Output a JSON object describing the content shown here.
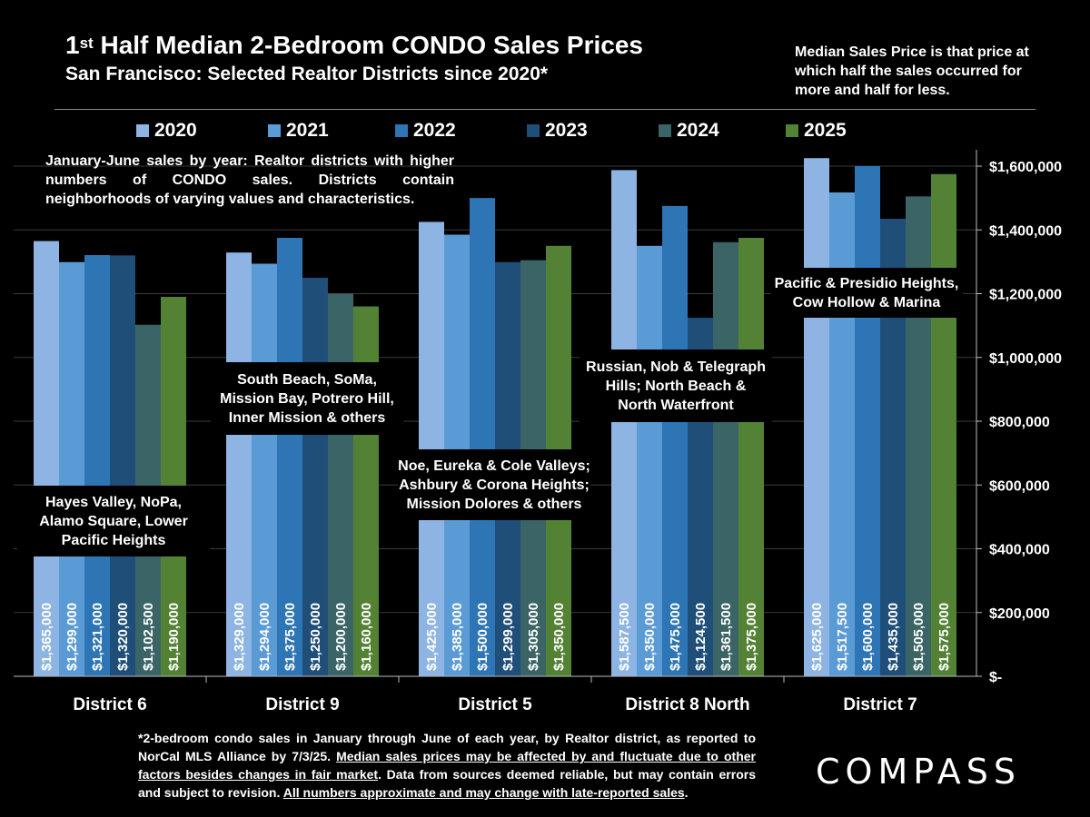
{
  "header": {
    "title_prefix": "1",
    "title_sup": "st",
    "title_rest": " Half Median 2-Bedroom CONDO Sales Prices",
    "subtitle": "San Francisco: Selected Realtor Districts since 2020*"
  },
  "note": "Median Sales Price is that price at which half the sales occurred for more and half for less.",
  "intro": "January-June sales by year: Realtor districts with higher numbers of CONDO sales. Districts contain neighborhoods of varying values and characteristics.",
  "footnote": {
    "part1": "*2-bedroom condo sales in January through June of each year, by Realtor district, as reported to NorCal MLS Alliance by 7/3/25. ",
    "part2": "Median sales prices may be affected by and fluctuate due to other factors besides changes in fair market",
    "part3": ". Data from sources deemed reliable, but may contain errors and subject to revision. ",
    "part4": "All numbers approximate and may change with late-reported sales",
    "part5": "."
  },
  "logo": "COMPASS",
  "chart_data": {
    "type": "bar",
    "categories": [
      "District 6",
      "District 9",
      "District 5",
      "District 8 North",
      "District 7"
    ],
    "series": [
      {
        "name": "2020",
        "color": "#8db4e2",
        "values": [
          1365000,
          1329000,
          1425000,
          1587500,
          1625000
        ]
      },
      {
        "name": "2021",
        "color": "#5b9bd5",
        "values": [
          1299000,
          1294000,
          1385000,
          1350000,
          1517500
        ]
      },
      {
        "name": "2022",
        "color": "#2e75b6",
        "values": [
          1321000,
          1375000,
          1500000,
          1475000,
          1600000
        ]
      },
      {
        "name": "2023",
        "color": "#1f4e79",
        "values": [
          1320000,
          1250000,
          1299000,
          1124500,
          1435000
        ]
      },
      {
        "name": "2024",
        "color": "#3a6466",
        "values": [
          1102500,
          1200000,
          1305000,
          1361500,
          1505000
        ]
      },
      {
        "name": "2025",
        "color": "#548235",
        "values": [
          1190000,
          1160000,
          1350000,
          1375000,
          1575000
        ]
      }
    ],
    "data_labels": [
      [
        "$1,365,000",
        "$1,299,000",
        "$1,321,000",
        "$1,320,000",
        "$1,102,500",
        "$1,190,000"
      ],
      [
        "$1,329,000",
        "$1,294,000",
        "$1,375,000",
        "$1,250,000",
        "$1,200,000",
        "$1,160,000"
      ],
      [
        "$1,425,000",
        "$1,385,000",
        "$1,500,000",
        "$1,299,000",
        "$1,305,000",
        "$1,350,000"
      ],
      [
        "$1,587,500",
        "$1,350,000",
        "$1,475,000",
        "$1,124,500",
        "$1,361,500",
        "$1,375,000"
      ],
      [
        "$1,625,000",
        "$1,517,500",
        "$1,600,000",
        "$1,435,000",
        "$1,505,000",
        "$1,575,000"
      ]
    ],
    "district_names": [
      "Hayes Valley, NoPa,\nAlamo Square, Lower\nPacific Heights",
      "South Beach, SoMa,\nMission Bay, Potrero Hill,\nInner Mission & others",
      "Noe, Eureka & Cole Valleys;\nAshbury & Corona Heights;\nMission Dolores & others",
      "Russian, Nob & Telegraph\nHills; North Beach &\nNorth Waterfront",
      "Pacific & Presidio Heights,\nCow Hollow & Marina"
    ],
    "y_ticks": [
      0,
      200000,
      400000,
      600000,
      800000,
      1000000,
      1200000,
      1400000,
      1600000
    ],
    "y_tick_labels": [
      "$-",
      "$200,000",
      "$400,000",
      "$600,000",
      "$800,000",
      "$1,000,000",
      "$1,200,000",
      "$1,400,000",
      "$1,600,000"
    ],
    "ylim": [
      0,
      1600000
    ],
    "y_axis_position": "right",
    "grid": true,
    "legend_position": "top"
  }
}
